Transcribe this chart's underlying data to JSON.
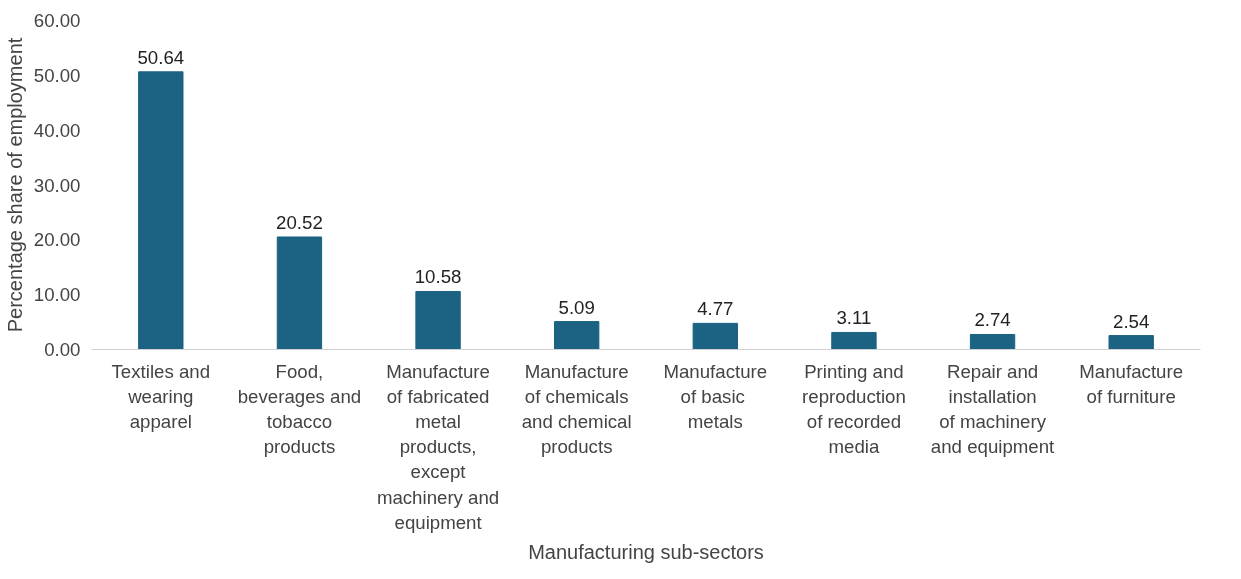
{
  "chart_data": {
    "type": "bar",
    "xlabel": "Manufacturing sub-sectors",
    "ylabel": "Percentage share of employment",
    "categories": [
      "Textiles and wearing apparel",
      "Food, beverages and tobacco products",
      "Manufacture of fabricated metal products, except machinery and equipment",
      "Manufacture of chemicals and chemical products",
      "Manufacture of  basic metals",
      "Printing and reproduction of recorded media",
      "Repair and installation of machinery and equipment",
      "Manufacture of furniture"
    ],
    "values": [
      50.64,
      20.52,
      10.58,
      5.09,
      4.77,
      3.11,
      2.74,
      2.54
    ],
    "color": "#1b6283",
    "ylim": [
      0,
      60
    ],
    "yticks": [
      {
        "value": 0,
        "label": "0.00"
      },
      {
        "value": 10,
        "label": "10.00"
      },
      {
        "value": 20,
        "label": "20.00"
      },
      {
        "value": 30,
        "label": "30.00"
      },
      {
        "value": 40,
        "label": "40.00"
      },
      {
        "value": 50,
        "label": "50.00"
      },
      {
        "value": 60,
        "label": "60.00"
      }
    ],
    "data_labels": true,
    "grid": false
  }
}
